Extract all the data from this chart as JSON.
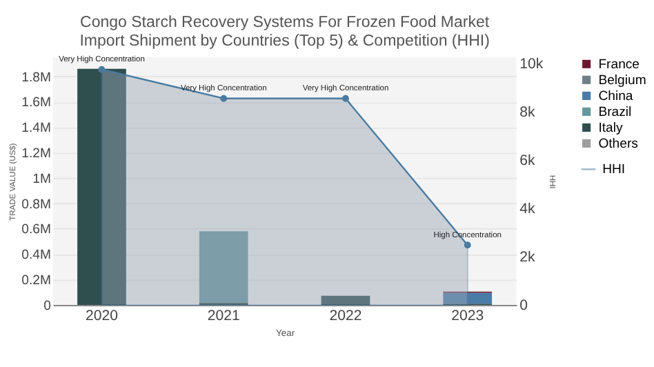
{
  "chart_data": {
    "type": "bar",
    "title": "Congo Starch Recovery Systems For Frozen Food Market\nImport Shipment by Countries (Top 5) & Competition (HHI)",
    "xlabel": "Year",
    "ylabel": "TRADE VALUE (US$)",
    "y2label": "HHI",
    "categories": [
      "2020",
      "2021",
      "2022",
      "2023"
    ],
    "stacked": true,
    "series": [
      {
        "name": "Others",
        "color": "#9e9e9e",
        "values": [
          null,
          null,
          null,
          null
        ]
      },
      {
        "name": "Italy",
        "color": "#2f4f4f",
        "values": [
          1860000,
          20000,
          73000,
          10000
        ]
      },
      {
        "name": "Brazil",
        "color": "#66989e",
        "values": [
          null,
          560000,
          null,
          null
        ]
      },
      {
        "name": "China",
        "color": "#4b7ca8",
        "values": [
          null,
          null,
          null,
          85000
        ]
      },
      {
        "name": "Belgium",
        "color": "#6f7f86",
        "values": [
          null,
          null,
          null,
          null
        ]
      },
      {
        "name": "France",
        "color": "#6b1a2e",
        "values": [
          null,
          null,
          null,
          10000
        ]
      },
      {
        "name": "HHI",
        "type": "area",
        "axis": "y2",
        "color": "#4a7ba0",
        "values": [
          9750,
          8550,
          8550,
          2480
        ]
      }
    ],
    "ylim": [
      0,
      1950000
    ],
    "yticks": [
      0,
      {
        "value": 200000,
        "label": "0.2M"
      },
      {
        "value": 400000,
        "label": "0.4M"
      },
      {
        "value": 600000,
        "label": "0.6M"
      },
      {
        "value": 800000,
        "label": "0.8M"
      },
      {
        "value": 1000000,
        "label": "1M"
      },
      {
        "value": 1200000,
        "label": "1.2M"
      },
      {
        "value": 1400000,
        "label": "1.4M"
      },
      {
        "value": 1600000,
        "label": "1.6M"
      },
      {
        "value": 1800000,
        "label": "1.8M"
      }
    ],
    "y2lim": [
      0,
      10250
    ],
    "y2ticks": [
      0,
      {
        "value": 2000,
        "label": "2k"
      },
      {
        "value": 4000,
        "label": "4k"
      },
      {
        "value": 6000,
        "label": "6k"
      },
      {
        "value": 8000,
        "label": "8k"
      },
      {
        "value": 10000,
        "label": "10k"
      }
    ],
    "annotations": [
      "Very High Concentration",
      "Very High Concentration",
      "Very High Concentration",
      "High Concentration"
    ],
    "grid": "y",
    "legend": "top right",
    "marker": "circle"
  }
}
